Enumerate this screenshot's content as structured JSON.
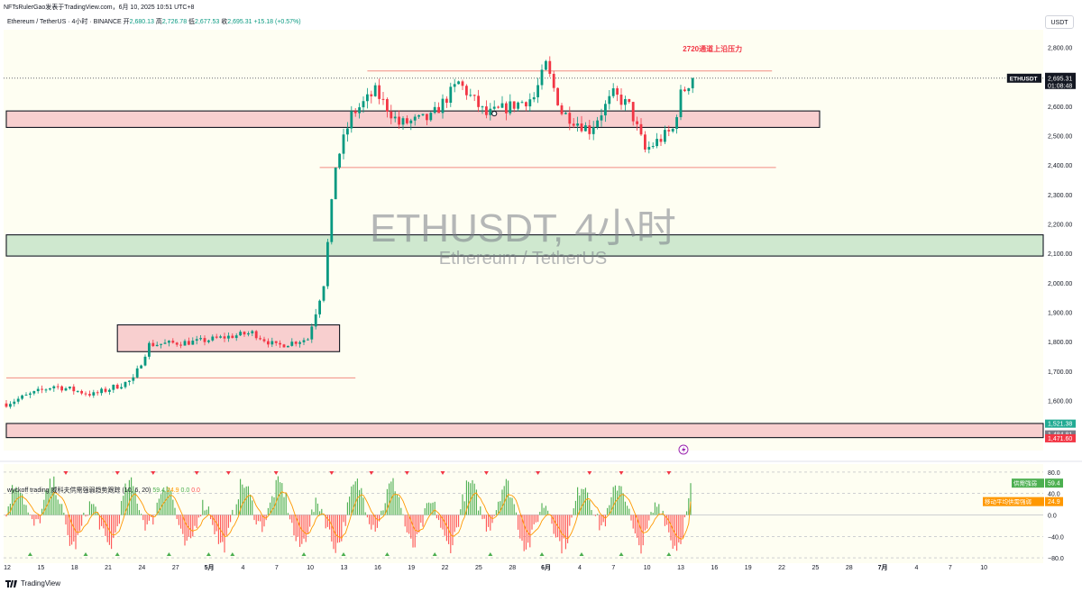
{
  "header": {
    "publisher_line": "NFTsRulerGao发表于TradingView.com，6月 10, 2025 10:51 UTC+8",
    "currency_button": "USDT"
  },
  "chart_data": {
    "type": "candlestick",
    "symbol_line": "Ethereum / TetherUS · 4小时 · BINANCE",
    "ohlc_labels": {
      "open": "开",
      "high": "高",
      "low": "低",
      "close": "收"
    },
    "ohlc": {
      "open": "2,680.13",
      "high": "2,726.78",
      "low": "2,677.53",
      "close": "2,695.31",
      "change": "+15.18 (+0.57%)"
    },
    "watermark": {
      "title": "ETHUSDT, 4小时",
      "subtitle": "Ethereum / TetherUS"
    },
    "y_axis": {
      "min": 1430,
      "max": 2860,
      "ticks": [
        1600,
        1700,
        1800,
        1900,
        2000,
        2100,
        2200,
        2300,
        2400,
        2500,
        2600,
        2700,
        2800
      ],
      "tick_labels": [
        "1,600.00",
        "1,700.00",
        "1,800.00",
        "1,900.00",
        "2,000.00",
        "2,100.00",
        "2,200.00",
        "2,300.00",
        "2,400.00",
        "2,500.00",
        "2,600.00",
        "2,700.00",
        "2,800.00"
      ]
    },
    "x_axis": {
      "labels": [
        "12",
        "15",
        "18",
        "21",
        "24",
        "27",
        "5月",
        "4",
        "7",
        "10",
        "13",
        "16",
        "19",
        "22",
        "25",
        "28",
        "6月",
        "4",
        "7",
        "10",
        "13",
        "16",
        "19",
        "22",
        "25",
        "28",
        "7月",
        "4",
        "7",
        "10"
      ]
    },
    "price_badges": [
      {
        "value": 2695.31,
        "label": "ETHUSDT",
        "price": "2,695.31",
        "countdown": "01:08:48",
        "color": "#131722"
      },
      {
        "value": 1521.38,
        "label": "",
        "price": "1,521.38",
        "countdown": "",
        "color": "#22ab94"
      },
      {
        "value": 1484.81,
        "label": "",
        "price": "1,484.81",
        "countdown": "",
        "color": "#787b86"
      },
      {
        "value": 1471.6,
        "label": "",
        "price": "1,471.60",
        "countdown": "",
        "color": "#f23645"
      }
    ],
    "zones": [
      {
        "type": "supply",
        "from_index": 0,
        "to_index": 205,
        "low": 2528,
        "high": 2584,
        "fill": "#f8cfcf"
      },
      {
        "type": "demand",
        "from_index": 0,
        "to_index": 265,
        "low": 2091,
        "high": 2163,
        "fill": "#cfe8cf"
      },
      {
        "type": "range",
        "from_index": 28,
        "to_index": 84,
        "low": 1766,
        "high": 1857,
        "fill": "#f8cfcf"
      },
      {
        "type": "supply",
        "from_index": 0,
        "to_index": 265,
        "low": 1474,
        "high": 1522,
        "fill": "#f8cfcf"
      }
    ],
    "levels": [
      {
        "value": 2720,
        "from_index": 91,
        "to_index": 193,
        "color": "#f28b82"
      },
      {
        "value": 2392,
        "from_index": 79,
        "to_index": 194,
        "color": "#f28b82"
      },
      {
        "value": 1677,
        "from_index": 0,
        "to_index": 88,
        "color": "#f28b82"
      }
    ],
    "annotations": [
      {
        "text": "2720通道上沿压力",
        "index": 178,
        "value": 2795,
        "color": "#f23645"
      }
    ],
    "candles": {
      "count": 174,
      "segments": [
        [
          0,
          1590
        ],
        [
          12,
          1650
        ],
        [
          22,
          1620
        ],
        [
          32,
          1670
        ],
        [
          36,
          1790
        ],
        [
          48,
          1800
        ],
        [
          62,
          1830
        ],
        [
          68,
          1785
        ],
        [
          76,
          1810
        ],
        [
          80,
          2000
        ],
        [
          83,
          2400
        ],
        [
          87,
          2570
        ],
        [
          93,
          2650
        ],
        [
          99,
          2540
        ],
        [
          107,
          2560
        ],
        [
          114,
          2680
        ],
        [
          121,
          2570
        ],
        [
          127,
          2600
        ],
        [
          133,
          2630
        ],
        [
          136,
          2740
        ],
        [
          140,
          2580
        ],
        [
          147,
          2520
        ],
        [
          153,
          2640
        ],
        [
          157,
          2600
        ],
        [
          161,
          2450
        ],
        [
          168,
          2520
        ],
        [
          170,
          2640
        ],
        [
          173,
          2695
        ]
      ]
    },
    "oscillator": {
      "name": "wyckoff trading 威科夫供需强弱趋势跟踪",
      "params": "(10, 6, 20)",
      "values_shown": [
        "59.4",
        "24.9",
        "0.0",
        "0.0"
      ],
      "range": [
        -90,
        95
      ],
      "ticks": [
        80,
        40,
        0,
        -40,
        -80
      ],
      "tick_labels": [
        "80.0",
        "40.0",
        "0.0",
        "−40.0",
        "−80.0"
      ],
      "last_value": 59.4,
      "signal_value": 24.9,
      "badges": [
        {
          "label": "供需强弱",
          "value": "59.4",
          "color": "#4caf50"
        },
        {
          "label": "移动平均供需强弱",
          "value": "24.9",
          "color": "#ff9800"
        }
      ]
    }
  },
  "footer": {
    "brand": "TradingView"
  }
}
